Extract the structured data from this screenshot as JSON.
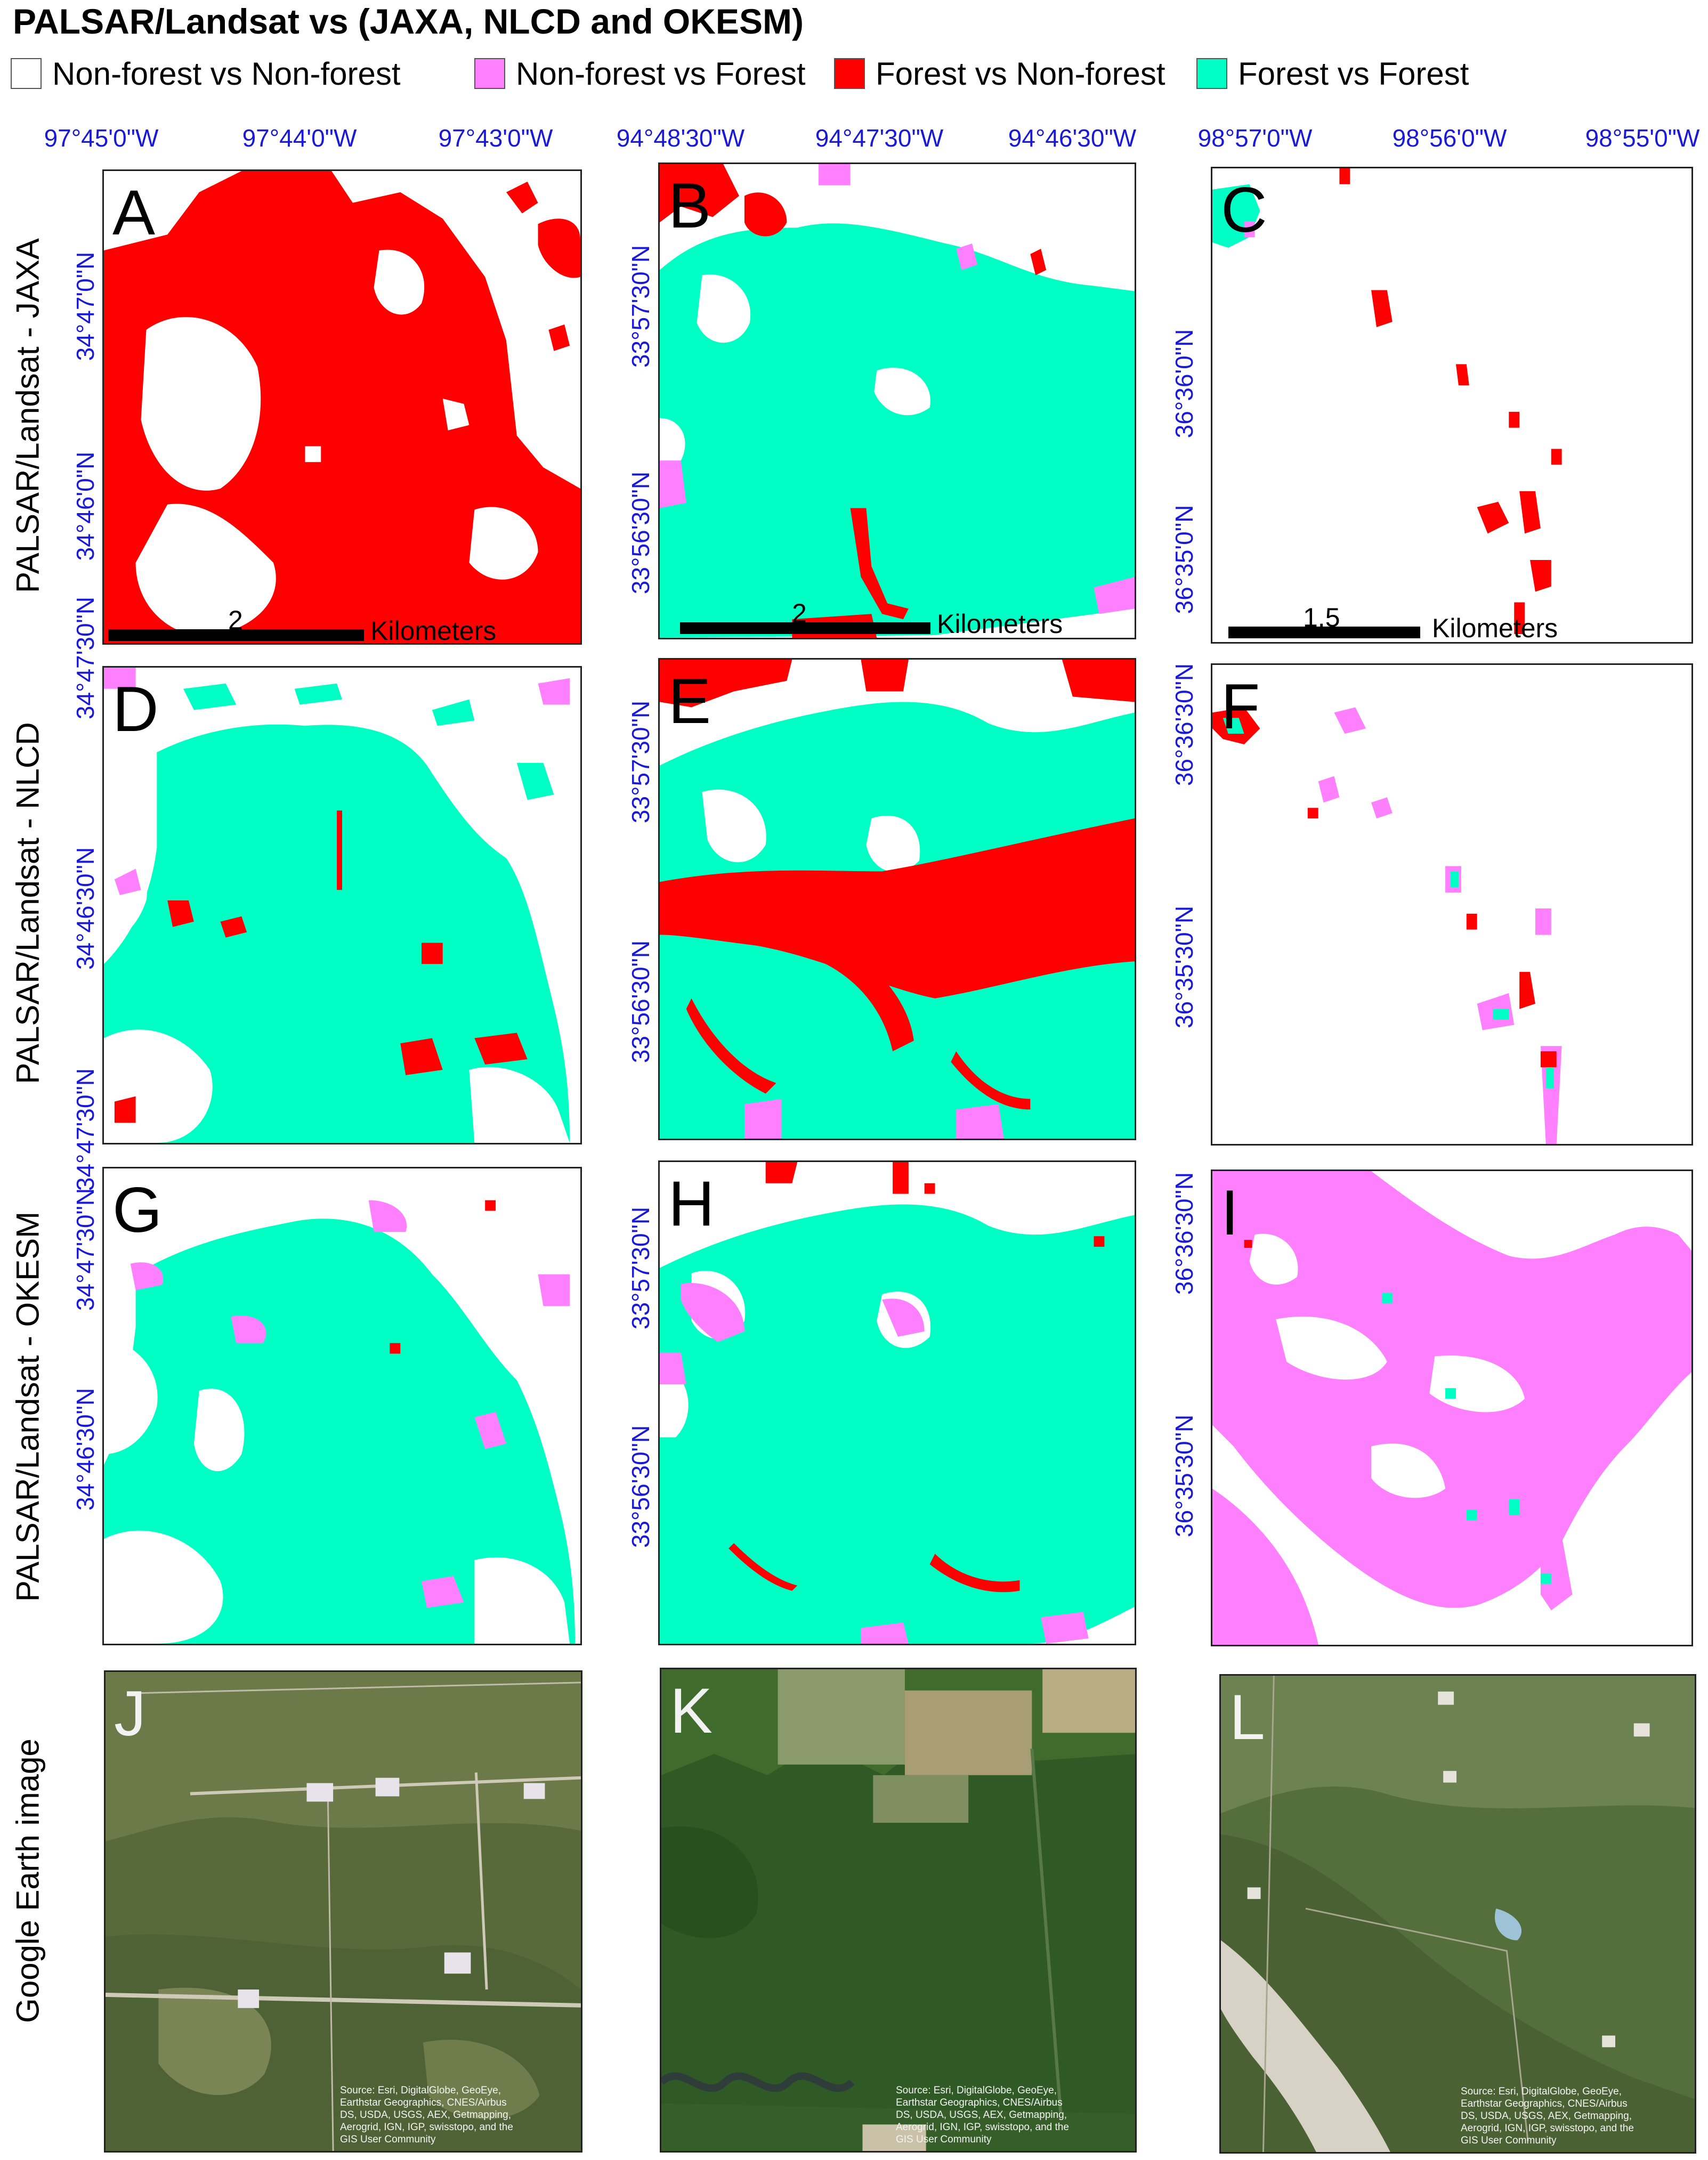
{
  "figure": {
    "title": "PALSAR/Landsat vs (JAXA, NLCD and OKESM)",
    "legend": [
      {
        "label": "Non-forest vs Non-forest",
        "color": "#ffffff"
      },
      {
        "label": "Non-forest vs Forest",
        "color": "#ff80ff"
      },
      {
        "label": "Forest vs Non-forest",
        "color": "#ff0000"
      },
      {
        "label": "Forest vs Forest",
        "color": "#00ffc5"
      }
    ]
  },
  "colors": {
    "nonforest": "#ffffff",
    "nf_vs_f": "#ff80ff",
    "f_vs_nf": "#ff0000",
    "f_vs_f": "#00ffc5",
    "coordinate_text": "#1a1ad6"
  },
  "row_labels": [
    "PALSAR/Landsat - JAXA",
    "PALSAR/Landsat - NLCD",
    "PALSAR/Landsat - OKESM",
    "Google Earth image"
  ],
  "columns": [
    {
      "lon_labels": [
        "97°45'0\"W",
        "97°44'0\"W",
        "97°43'0\"W"
      ],
      "lat_labels_row1": [
        "34°47'0\"N",
        "34°46'0\"N",
        "34°47'30\"N"
      ],
      "lat_labels_row2": [
        "34°47'30\"N",
        "34°46'30\"N",
        "34°47'30\"N"
      ],
      "lat_labels_row3": [
        "34°47'30\"N",
        "34°46'30\"N"
      ]
    },
    {
      "lon_labels": [
        "94°48'30\"W",
        "94°47'30\"W",
        "94°46'30\"W"
      ],
      "lat_labels_row1": [
        "33°57'30\"N",
        "33°56'30\"N"
      ],
      "lat_labels_row2": [
        "33°57'30\"N",
        "33°56'30\"N"
      ],
      "lat_labels_row3": [
        "33°57'30\"N",
        "33°56'30\"N"
      ]
    },
    {
      "lon_labels": [
        "98°57'0\"W",
        "98°56'0\"W",
        "98°55'0\"W"
      ],
      "lat_labels_row1": [
        "36°36'0\"N",
        "36°35'0\"N",
        "36°36'30\"N"
      ],
      "lat_labels_row2": [
        "36°36'30\"N",
        "36°35'30\"N"
      ],
      "lat_labels_row3": [
        "36°36'30\"N",
        "36°35'30\"N"
      ]
    }
  ],
  "panels": [
    {
      "letter": "A",
      "scale_value": "2",
      "scale_unit": "Kilometers"
    },
    {
      "letter": "B",
      "scale_value": "2",
      "scale_unit": "Kilometers"
    },
    {
      "letter": "C",
      "scale_value": "1.5",
      "scale_unit": "Kilometers"
    },
    {
      "letter": "D"
    },
    {
      "letter": "E"
    },
    {
      "letter": "F"
    },
    {
      "letter": "G"
    },
    {
      "letter": "H"
    },
    {
      "letter": "I"
    },
    {
      "letter": "J",
      "attribution": "Source: Esri, DigitalGlobe, GeoEye, Earthstar Geographics, CNES/Airbus DS, USDA, USGS, AEX, Getmapping, Aerogrid, IGN, IGP, swisstopo, and the GIS User Community"
    },
    {
      "letter": "K",
      "attribution": "Source: Esri, DigitalGlobe, GeoEye, Earthstar Geographics, CNES/Airbus DS, USDA, USGS, AEX, Getmapping, Aerogrid, IGN, IGP, swisstopo, and the GIS User Community"
    },
    {
      "letter": "L",
      "attribution": "Source: Esri, DigitalGlobe, GeoEye, Earthstar Geographics, CNES/Airbus DS, USDA, USGS, AEX, Getmapping, Aerogrid, IGN, IGP, swisstopo, and the GIS User Community"
    }
  ]
}
